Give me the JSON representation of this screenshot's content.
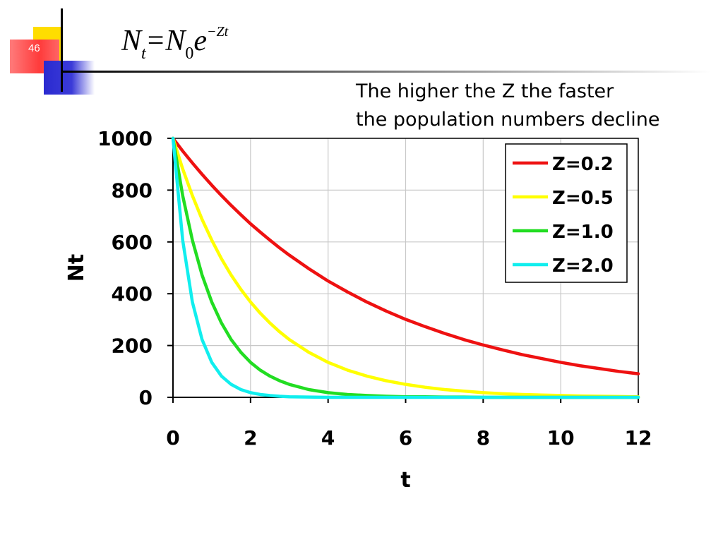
{
  "slide": {
    "number": "46",
    "formula": {
      "lhs_base": "N",
      "lhs_sub": "t",
      "equals": "=",
      "rhs_base": "N",
      "rhs_sub": "0",
      "exp_base": "e",
      "exponent": "−Zt"
    },
    "caption_line1": "The higher the Z the faster",
    "caption_line2": "the population numbers decline",
    "colors": {
      "accent_yellow": "#ffdd00",
      "accent_blue": "#3333cc",
      "accent_red": "#ff3b3b"
    }
  },
  "chart_data": {
    "type": "line",
    "title": "",
    "xlabel": "t",
    "ylabel": "Nt",
    "xlim": [
      0,
      12
    ],
    "ylim": [
      0,
      1000
    ],
    "x_ticks": [
      0,
      2,
      4,
      6,
      8,
      10,
      12
    ],
    "y_ticks": [
      0,
      200,
      400,
      600,
      800,
      1000
    ],
    "grid": true,
    "legend_position": "top-right",
    "x": [
      0,
      0.25,
      0.5,
      0.75,
      1,
      1.25,
      1.5,
      1.75,
      2,
      2.25,
      2.5,
      2.75,
      3,
      3.5,
      4,
      4.5,
      5,
      5.5,
      6,
      6.5,
      7,
      7.5,
      8,
      8.5,
      9,
      9.5,
      10,
      10.5,
      11,
      11.5,
      12
    ],
    "series": [
      {
        "name": "Z=0.2",
        "color": "#ee1111",
        "values": [
          1000,
          951,
          905,
          861,
          819,
          779,
          741,
          705,
          670,
          638,
          607,
          577,
          549,
          497,
          449,
          407,
          368,
          333,
          301,
          273,
          247,
          223,
          202,
          183,
          165,
          150,
          135,
          122,
          111,
          100,
          91
        ]
      },
      {
        "name": "Z=0.5",
        "color": "#ffff00",
        "values": [
          1000,
          882,
          779,
          687,
          607,
          535,
          472,
          417,
          368,
          325,
          287,
          253,
          223,
          174,
          135,
          105,
          82,
          64,
          50,
          39,
          30,
          24,
          18,
          14,
          11,
          9,
          7,
          5,
          4,
          3,
          2
        ]
      },
      {
        "name": "Z=1.0",
        "color": "#22dd22",
        "values": [
          1000,
          779,
          607,
          472,
          368,
          287,
          223,
          174,
          135,
          105,
          82,
          64,
          50,
          30,
          18,
          11,
          7,
          4,
          2,
          2,
          1,
          1,
          0,
          0,
          0,
          0,
          0,
          0,
          0,
          0,
          0
        ]
      },
      {
        "name": "Z=2.0",
        "color": "#11eeee",
        "values": [
          1000,
          607,
          368,
          223,
          135,
          82,
          50,
          30,
          18,
          11,
          7,
          4,
          2,
          1,
          0,
          0,
          0,
          0,
          0,
          0,
          0,
          0,
          0,
          0,
          0,
          0,
          0,
          0,
          0,
          0,
          0
        ]
      }
    ]
  }
}
